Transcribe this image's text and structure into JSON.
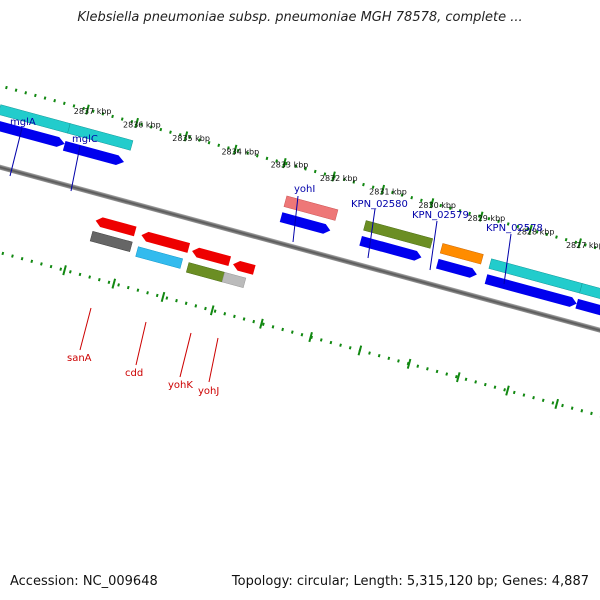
{
  "title": "Klebsiella pneumoniae subsp. pneumoniae MGH 78578, complete ...",
  "footer": {
    "accession": "Accession: NC_009648",
    "summary": "Topology: circular; Length: 5,315,120 bp; Genes: 4,887"
  },
  "ticks": [
    {
      "label": "2837 kbp",
      "pos": 2837
    },
    {
      "label": "2836 kbp",
      "pos": 2836
    },
    {
      "label": "2835 kbp",
      "pos": 2835
    },
    {
      "label": "2834 kbp",
      "pos": 2834
    },
    {
      "label": "2833 kbp",
      "pos": 2833
    },
    {
      "label": "2832 kbp",
      "pos": 2832
    },
    {
      "label": "2831 kbp",
      "pos": 2831
    },
    {
      "label": "2830 kbp",
      "pos": 2830
    },
    {
      "label": "2829 kbp",
      "pos": 2829
    },
    {
      "label": "2828 kbp",
      "pos": 2828
    },
    {
      "label": "2827 kbp",
      "pos": 2827
    }
  ],
  "forward_genes": [
    {
      "name": "mglA"
    },
    {
      "name": "mglC"
    },
    {
      "name": "yohI"
    },
    {
      "name": "KPN_02580"
    },
    {
      "name": "KPN_02579"
    },
    {
      "name": "KPN_02578"
    }
  ],
  "reverse_genes": [
    {
      "name": "sanA"
    },
    {
      "name": "cdd"
    },
    {
      "name": "yohK"
    },
    {
      "name": "yohJ"
    }
  ],
  "colors": {
    "cyan": "#22cccc",
    "blue": "#0000ee",
    "red": "#ee0000",
    "gray": "#666666",
    "lightgray": "#bbbbbb",
    "olive": "#6b8e23",
    "orange": "#ff8c00",
    "skyblue": "#33bbee",
    "salmon": "#ee7777",
    "green": "#118811",
    "fwd_label": "#0000aa",
    "rev_label": "#cc0000"
  }
}
